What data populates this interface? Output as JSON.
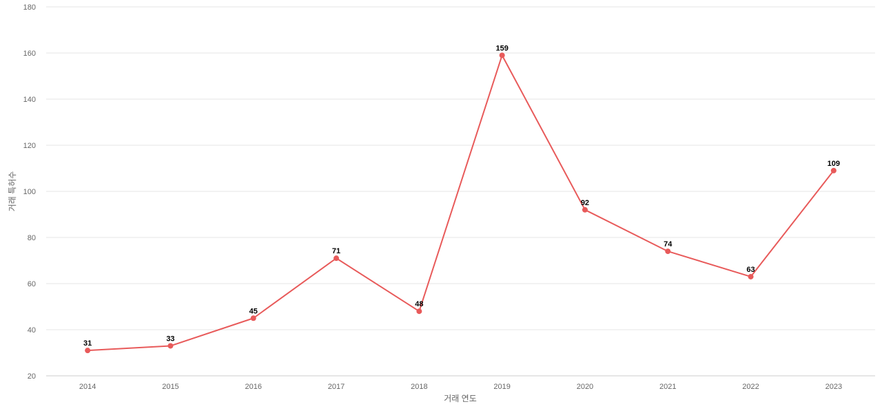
{
  "chart_data": {
    "type": "line",
    "title": "",
    "xlabel": "거래 연도",
    "ylabel": "거래 특허수",
    "categories": [
      "2014",
      "2015",
      "2016",
      "2017",
      "2018",
      "2019",
      "2020",
      "2021",
      "2022",
      "2023"
    ],
    "series": [
      {
        "values": [
          31,
          33,
          45,
          71,
          48,
          159,
          92,
          74,
          63,
          109
        ],
        "color": "#e85a5a"
      }
    ],
    "ylim": [
      20,
      180
    ],
    "yticks": [
      20,
      40,
      60,
      80,
      100,
      120,
      140,
      160,
      180
    ],
    "grid": true,
    "legend": "none",
    "data_labels": true
  }
}
